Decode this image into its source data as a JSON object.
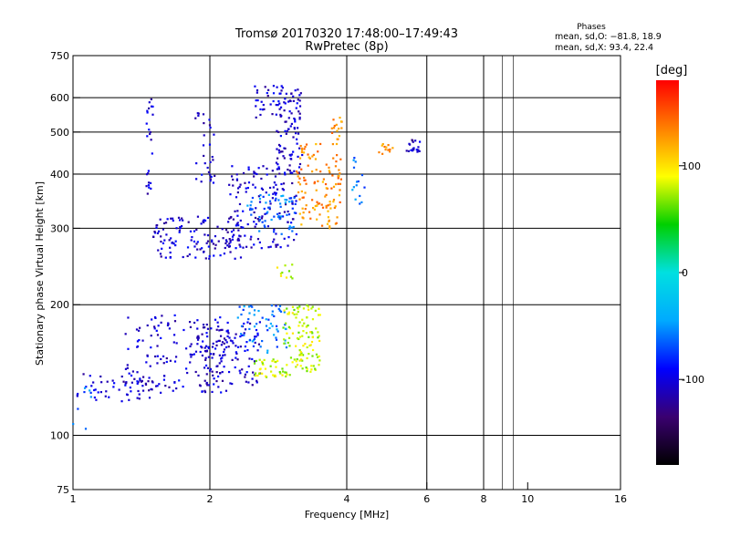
{
  "chart_data": {
    "type": "scatter",
    "title": "Tromsø 20170320 17:48:00–17:49:43",
    "subtitle": "RwPretec (8p)",
    "xlabel": "Frequency [MHz]",
    "ylabel": "Stationary phase Virtual Height [km]",
    "x_scale": "log",
    "y_scale": "log",
    "xlim": [
      1,
      16
    ],
    "ylim": [
      75,
      750
    ],
    "x_ticks": [
      1,
      2,
      4,
      6,
      8,
      10,
      16
    ],
    "y_ticks": [
      75,
      100,
      200,
      300,
      400,
      500,
      600,
      750
    ],
    "x_grid": [
      2,
      4,
      6,
      8
    ],
    "y_grid": [
      100,
      200,
      300,
      400,
      500,
      600
    ],
    "x_minor_lines": [
      8.8,
      9.3
    ],
    "grid": true,
    "stats": {
      "heading": "Phases",
      "line1": "mean, sd,O: −81.8, 18.9",
      "line2": "mean, sd,X:  93.4, 22.4"
    },
    "colorbar": {
      "label": "[deg]",
      "range": [
        -180,
        180
      ],
      "ticks": [
        100,
        0,
        -100
      ],
      "colors": [
        "#000000",
        "#3a0070",
        "#0000ff",
        "#00aaff",
        "#00e0e0",
        "#00d000",
        "#ffff00",
        "#ff8000",
        "#ff0000"
      ]
    },
    "series": [
      {
        "phase_deg": -105,
        "clusters": [
          {
            "f": [
              1.02,
              1.5
            ],
            "h": [
              118,
              140
            ],
            "n": 50
          },
          {
            "f": [
              1.3,
              2.2
            ],
            "h": [
              125,
              190
            ],
            "n": 160
          },
          {
            "f": [
              1.9,
              2.6
            ],
            "h": [
              130,
              185
            ],
            "n": 110
          },
          {
            "f": [
              1.5,
              2.4
            ],
            "h": [
              255,
              320
            ],
            "n": 130
          },
          {
            "f": [
              2.2,
              3.1
            ],
            "h": [
              270,
              420
            ],
            "n": 140
          },
          {
            "f": [
              2.8,
              3.2
            ],
            "h": [
              400,
              630
            ],
            "n": 80
          },
          {
            "f": [
              2.5,
              3.0
            ],
            "h": [
              540,
              640
            ],
            "n": 40
          },
          {
            "f": [
              1.45,
              1.5
            ],
            "h": [
              360,
              600
            ],
            "n": 25
          },
          {
            "f": [
              1.85,
              2.05
            ],
            "h": [
              380,
              560
            ],
            "n": 30
          }
        ]
      },
      {
        "phase_deg": -60,
        "clusters": [
          {
            "f": [
              2.3,
              2.95
            ],
            "h": [
              155,
              200
            ],
            "n": 60
          },
          {
            "f": [
              2.4,
              3.1
            ],
            "h": [
              290,
              360
            ],
            "n": 60
          },
          {
            "f": [
              4.1,
              4.4
            ],
            "h": [
              340,
              440
            ],
            "n": 15
          },
          {
            "f": [
              1.0,
              1.1
            ],
            "h": [
              100,
              130
            ],
            "n": 8
          }
        ]
      },
      {
        "phase_deg": 80,
        "clusters": [
          {
            "f": [
              2.9,
              3.5
            ],
            "h": [
              140,
              200
            ],
            "n": 110
          },
          {
            "f": [
              2.5,
              3.0
            ],
            "h": [
              135,
              150
            ],
            "n": 40
          },
          {
            "f": [
              2.8,
              3.2
            ],
            "h": [
              230,
              250
            ],
            "n": 10
          }
        ]
      },
      {
        "phase_deg": 130,
        "clusters": [
          {
            "f": [
              3.1,
              3.9
            ],
            "h": [
              300,
              470
            ],
            "n": 120
          },
          {
            "f": [
              3.7,
              3.9
            ],
            "h": [
              480,
              540
            ],
            "n": 15
          },
          {
            "f": [
              4.7,
              5.1
            ],
            "h": [
              440,
              470
            ],
            "n": 12
          }
        ]
      },
      {
        "phase_deg": -110,
        "clusters": [
          {
            "f": [
              5.4,
              5.8
            ],
            "h": [
              450,
              480
            ],
            "n": 20
          }
        ]
      }
    ]
  }
}
